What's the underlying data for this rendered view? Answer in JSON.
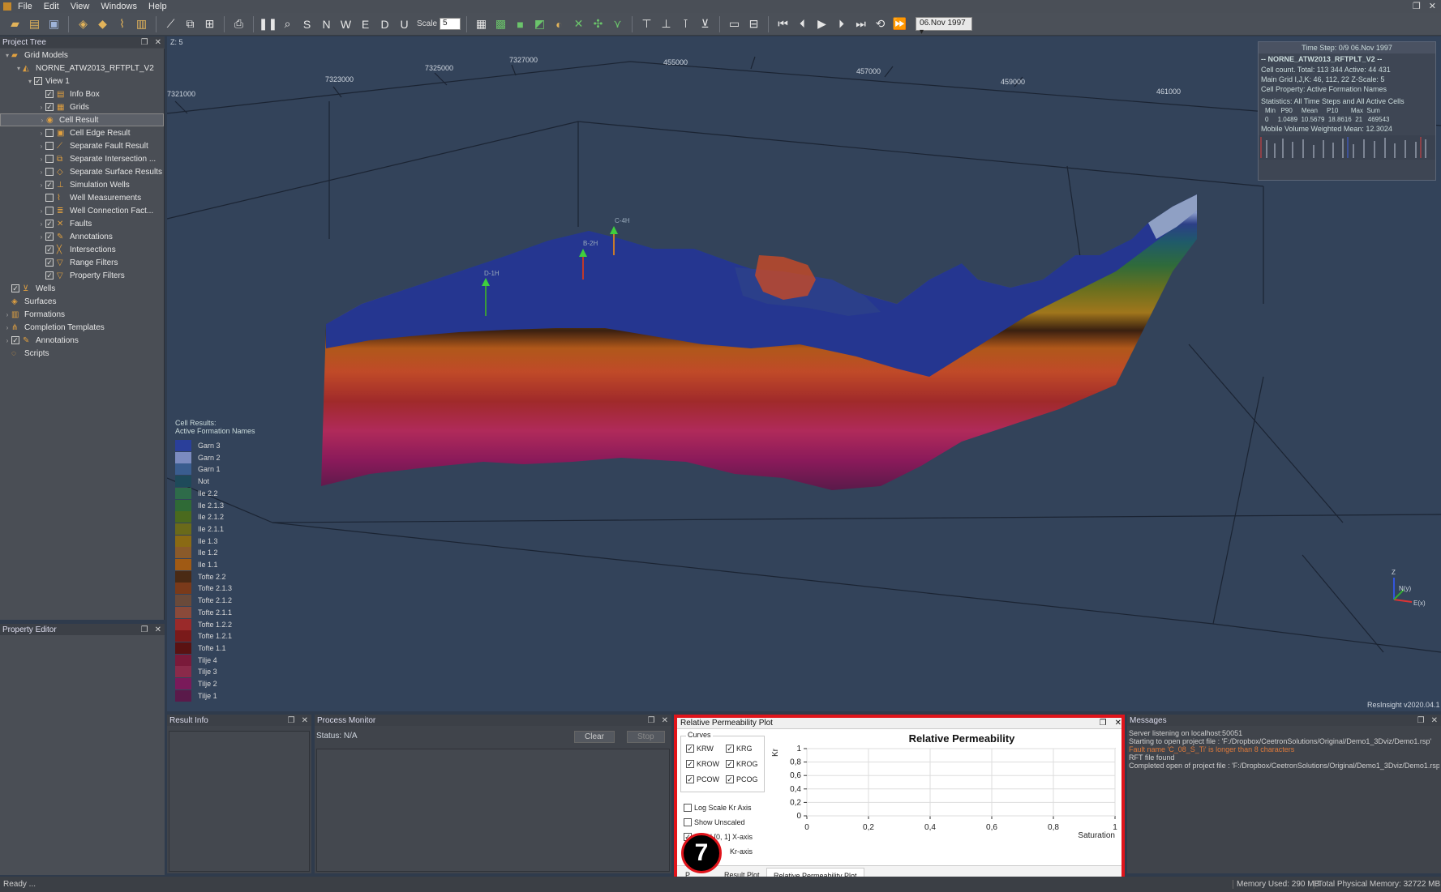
{
  "menu": [
    "File",
    "Edit",
    "View",
    "Windows",
    "Help"
  ],
  "toolbar": {
    "scale_label": "Scale",
    "scale_value": "5",
    "date": "06.Nov 1997"
  },
  "project_tree": {
    "title": "Project Tree",
    "items": [
      {
        "label": "Grid Models",
        "indent": 0,
        "arrow": "v",
        "check": null,
        "icon": "grid-models-icon"
      },
      {
        "label": "NORNE_ATW2013_RFTPLT_V2",
        "indent": 1,
        "arrow": "v",
        "check": null,
        "icon": "case-icon"
      },
      {
        "label": "View 1",
        "indent": 2,
        "arrow": "v",
        "check": true,
        "icon": null
      },
      {
        "label": "Info Box",
        "indent": 3,
        "arrow": "",
        "check": true,
        "icon": "info-box-icon"
      },
      {
        "label": "Grids",
        "indent": 3,
        "arrow": ">",
        "check": true,
        "icon": "grids-icon"
      },
      {
        "label": "Cell Result",
        "indent": 3,
        "arrow": ">",
        "check": null,
        "icon": "cell-result-icon",
        "selected": true
      },
      {
        "label": "Cell Edge Result",
        "indent": 3,
        "arrow": ">",
        "check": false,
        "icon": "cell-edge-icon"
      },
      {
        "label": "Separate Fault Result",
        "indent": 3,
        "arrow": ">",
        "check": false,
        "icon": "fault-result-icon"
      },
      {
        "label": "Separate Intersection ...",
        "indent": 3,
        "arrow": ">",
        "check": false,
        "icon": "intersection-result-icon"
      },
      {
        "label": "Separate Surface Results",
        "indent": 3,
        "arrow": ">",
        "check": false,
        "icon": "surface-result-icon"
      },
      {
        "label": "Simulation Wells",
        "indent": 3,
        "arrow": ">",
        "check": true,
        "icon": "simulation-wells-icon"
      },
      {
        "label": "Well Measurements",
        "indent": 3,
        "arrow": "",
        "check": false,
        "icon": "well-measurements-icon"
      },
      {
        "label": "Well Connection Fact...",
        "indent": 3,
        "arrow": ">",
        "check": false,
        "icon": "well-connection-icon"
      },
      {
        "label": "Faults",
        "indent": 3,
        "arrow": ">",
        "check": true,
        "icon": "faults-icon"
      },
      {
        "label": "Annotations",
        "indent": 3,
        "arrow": ">",
        "check": true,
        "icon": "annotations-icon"
      },
      {
        "label": "Intersections",
        "indent": 3,
        "arrow": "",
        "check": true,
        "icon": "intersections-icon"
      },
      {
        "label": "Range Filters",
        "indent": 3,
        "arrow": "",
        "check": true,
        "icon": "range-filter-icon"
      },
      {
        "label": "Property Filters",
        "indent": 3,
        "arrow": "",
        "check": true,
        "icon": "property-filter-icon"
      },
      {
        "label": "Wells",
        "indent": 0,
        "arrow": "",
        "check": true,
        "icon": "wells-icon"
      },
      {
        "label": "Surfaces",
        "indent": 0,
        "arrow": "",
        "check": null,
        "icon": "surfaces-icon"
      },
      {
        "label": "Formations",
        "indent": 0,
        "arrow": ">",
        "check": null,
        "icon": "formations-icon"
      },
      {
        "label": "Completion Templates",
        "indent": 0,
        "arrow": ">",
        "check": null,
        "icon": "completion-icon"
      },
      {
        "label": "Annotations",
        "indent": 0,
        "arrow": ">",
        "check": true,
        "icon": "annotations-icon"
      },
      {
        "label": "Scripts",
        "indent": 0,
        "arrow": "",
        "check": null,
        "icon": "scripts-icon"
      }
    ]
  },
  "property_editor": {
    "title": "Property Editor"
  },
  "viewport": {
    "z_scale": "Z: 5",
    "axis_labels": [
      "7321000",
      "7323000",
      "7325000",
      "7327000",
      "455000",
      "457000",
      "459000",
      "461000"
    ],
    "wells": [
      "D-1H",
      "B-2H",
      "C-4H"
    ],
    "version": "ResInsight v2020.04.1",
    "axis_z": "Z",
    "axis_n": "N(y)",
    "axis_e": "E(x)"
  },
  "legend": {
    "title": "Cell Results:",
    "subtitle": "Active Formation Names",
    "items": [
      {
        "label": "Garn 3",
        "color": "#2a3f9a"
      },
      {
        "label": "Garn 2",
        "color": "#7b8bbf"
      },
      {
        "label": "Garn 1",
        "color": "#3a5d8f"
      },
      {
        "label": "Not",
        "color": "#1e4a5a"
      },
      {
        "label": "Ile 2.2",
        "color": "#2e6b4a"
      },
      {
        "label": "Ile 2.1.3",
        "color": "#2f6a36"
      },
      {
        "label": "Ile 2.1.2",
        "color": "#4a6a1e"
      },
      {
        "label": "Ile 2.1.1",
        "color": "#6a6a1a"
      },
      {
        "label": "Ile 1.3",
        "color": "#8a6a14"
      },
      {
        "label": "Ile 1.2",
        "color": "#8a5a2a"
      },
      {
        "label": "Ile 1.1",
        "color": "#a05a14"
      },
      {
        "label": "Tofte 2.2",
        "color": "#4a2a14"
      },
      {
        "label": "Tofte 2.1.3",
        "color": "#7a3a1a"
      },
      {
        "label": "Tofte 2.1.2",
        "color": "#6a4a3a"
      },
      {
        "label": "Tofte 2.1.1",
        "color": "#8a4a3a"
      },
      {
        "label": "Tofte 1.2.2",
        "color": "#9a2a2a"
      },
      {
        "label": "Tofte 1.2.1",
        "color": "#7a1a1a"
      },
      {
        "label": "Tofte 1.1",
        "color": "#5a1212"
      },
      {
        "label": "Tilje 4",
        "color": "#7a1a3a"
      },
      {
        "label": "Tilje 3",
        "color": "#8a2a4a"
      },
      {
        "label": "Tilje 2",
        "color": "#7a1a5a"
      },
      {
        "label": "Tilje 1",
        "color": "#5a1a4a"
      }
    ]
  },
  "infobox": {
    "timestep": "Time Step: 0/9 06.Nov 1997",
    "case": "-- NORNE_ATW2013_RFTPLT_V2 --",
    "cell_count": "Cell count. Total: 113 344 Active: 44 431",
    "main_grid": "Main Grid I,J,K: 46, 112, 22 Z-Scale: 5",
    "cell_property": "Cell Property: Active Formation Names",
    "statistics": "Statistics: All Time Steps and All Active Cells",
    "stats_header": "Min   P90     Mean     P10       Max  Sum",
    "stats_values": "0     1.0489  10.5679  18.8616  21   469543",
    "mobile": "Mobile Volume Weighted Mean: 12.3024"
  },
  "result_info": {
    "title": "Result Info"
  },
  "process_monitor": {
    "title": "Process Monitor",
    "status": "Status:  N/A",
    "clear": "Clear",
    "stop": "Stop"
  },
  "relperm": {
    "title": "Relative Permeability Plot",
    "curves_group": "Curves",
    "curves": [
      {
        "label": "KRW",
        "checked": true
      },
      {
        "label": "KRG",
        "checked": true
      },
      {
        "label": "KROW",
        "checked": true
      },
      {
        "label": "KROG",
        "checked": true
      },
      {
        "label": "PCOW",
        "checked": true
      },
      {
        "label": "PCOG",
        "checked": true
      }
    ],
    "log_scale": "Log Scale Kr Axis",
    "show_unscaled": "Show Unscaled",
    "fixed_x": "Fixed [0, 1] X-axis",
    "fixed_kr": "Kr-axis",
    "tab_result": "Result Plot",
    "tab_relperm": "Relative Permeability Plot",
    "tab_partial": "P"
  },
  "chart_data": {
    "type": "line",
    "title": "Relative Permeability",
    "xlabel": "Saturation",
    "ylabel": "Kr",
    "xlim": [
      0,
      1
    ],
    "ylim": [
      0,
      1
    ],
    "x_ticks": [
      "0",
      "0,2",
      "0,4",
      "0,6",
      "0,8",
      "1"
    ],
    "y_ticks": [
      "0",
      "0,2",
      "0,4",
      "0,6",
      "0,8",
      "1"
    ],
    "grid": true,
    "series": []
  },
  "messages": {
    "title": "Messages",
    "lines": [
      {
        "text": "Server listening on localhost:50051",
        "color": "#d0d0d0"
      },
      {
        "text": "Starting to open project file : 'F:/Dropbox/CeetronSolutions/Original/Demo1_3Dviz/Demo1.rsp'",
        "color": "#d0d0d0"
      },
      {
        "text": "Fault name 'C_08_S_Ti' is longer than 8 characters",
        "color": "#e07a3a"
      },
      {
        "text": "RFT file found",
        "color": "#d0d0d0"
      },
      {
        "text": "Completed open of project file : 'F:/Dropbox/CeetronSolutions/Original/Demo1_3Dviz/Demo1.rsp'",
        "color": "#d0d0d0"
      }
    ]
  },
  "statusbar": {
    "ready": "Ready ...",
    "memory_used": "Memory Used: 290 MB",
    "total_memory": "Total Physical Memory: 32722 MB"
  },
  "badge": "7"
}
